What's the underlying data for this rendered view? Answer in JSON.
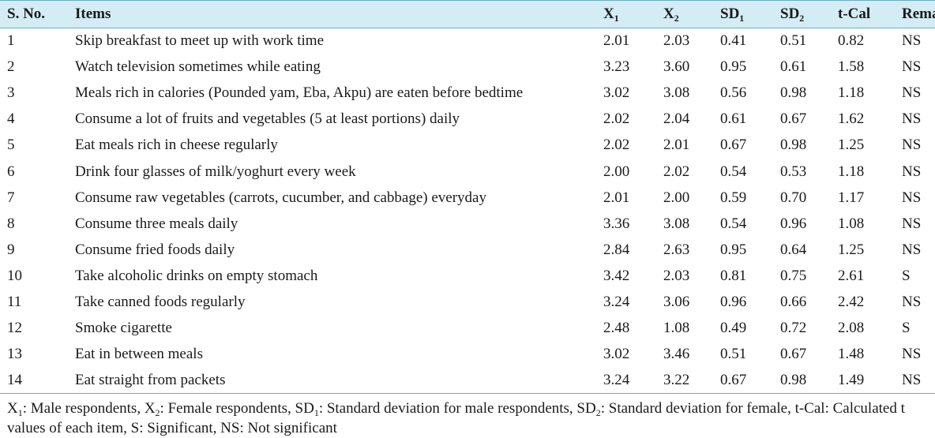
{
  "table": {
    "headers": {
      "sno": "S. No.",
      "items": "Items",
      "x1": {
        "base": "X",
        "sub": "1"
      },
      "x2": {
        "base": "X",
        "sub": "2"
      },
      "sd1": {
        "base": "SD",
        "sub": "1"
      },
      "sd2": {
        "base": "SD",
        "sub": "2"
      },
      "tcal": "t-Cal",
      "remark": "Remark"
    },
    "rows": [
      {
        "sno": "1",
        "item": "Skip breakfast to meet up with work time",
        "x1": "2.01",
        "x2": "2.03",
        "sd1": "0.41",
        "sd2": "0.51",
        "tcal": "0.82",
        "remark": "NS"
      },
      {
        "sno": "2",
        "item": "Watch television sometimes while eating",
        "x1": "3.23",
        "x2": "3.60",
        "sd1": "0.95",
        "sd2": "0.61",
        "tcal": "1.58",
        "remark": "NS"
      },
      {
        "sno": "3",
        "item": "Meals rich in calories (Pounded yam, Eba, Akpu) are eaten before bedtime",
        "x1": "3.02",
        "x2": "3.08",
        "sd1": "0.56",
        "sd2": "0.98",
        "tcal": "1.18",
        "remark": "NS"
      },
      {
        "sno": "4",
        "item": "Consume a lot of fruits and vegetables (5 at least portions) daily",
        "x1": "2.02",
        "x2": "2.04",
        "sd1": "0.61",
        "sd2": "0.67",
        "tcal": "1.62",
        "remark": "NS"
      },
      {
        "sno": "5",
        "item": "Eat meals rich in cheese regularly",
        "x1": "2.02",
        "x2": "2.01",
        "sd1": "0.67",
        "sd2": "0.98",
        "tcal": "1.25",
        "remark": "NS"
      },
      {
        "sno": "6",
        "item": "Drink four glasses of milk/yoghurt every week",
        "x1": "2.00",
        "x2": "2.02",
        "sd1": "0.54",
        "sd2": "0.53",
        "tcal": "1.18",
        "remark": "NS"
      },
      {
        "sno": "7",
        "item": "Consume raw vegetables (carrots, cucumber, and cabbage) everyday",
        "x1": "2.01",
        "x2": "2.00",
        "sd1": "0.59",
        "sd2": "0.70",
        "tcal": "1.17",
        "remark": "NS"
      },
      {
        "sno": "8",
        "item": "Consume three meals daily",
        "x1": "3.36",
        "x2": "3.08",
        "sd1": "0.54",
        "sd2": "0.96",
        "tcal": "1.08",
        "remark": "NS"
      },
      {
        "sno": "9",
        "item": "Consume fried foods daily",
        "x1": "2.84",
        "x2": "2.63",
        "sd1": "0.95",
        "sd2": "0.64",
        "tcal": "1.25",
        "remark": "NS"
      },
      {
        "sno": "10",
        "item": "Take alcoholic drinks on empty stomach",
        "x1": "3.42",
        "x2": "2.03",
        "sd1": "0.81",
        "sd2": "0.75",
        "tcal": "2.61",
        "remark": "S"
      },
      {
        "sno": "11",
        "item": "Take canned foods regularly",
        "x1": "3.24",
        "x2": "3.06",
        "sd1": "0.96",
        "sd2": "0.66",
        "tcal": "2.42",
        "remark": "NS"
      },
      {
        "sno": "12",
        "item": "Smoke cigarette",
        "x1": "2.48",
        "x2": "1.08",
        "sd1": "0.49",
        "sd2": "0.72",
        "tcal": "2.08",
        "remark": "S"
      },
      {
        "sno": "13",
        "item": "Eat in between meals",
        "x1": "3.02",
        "x2": "3.46",
        "sd1": "0.51",
        "sd2": "0.67",
        "tcal": "1.48",
        "remark": "NS"
      },
      {
        "sno": "14",
        "item": "Eat straight from packets",
        "x1": "3.24",
        "x2": "3.22",
        "sd1": "0.67",
        "sd2": "0.98",
        "tcal": "1.49",
        "remark": "NS"
      }
    ]
  },
  "footnote": {
    "parts": [
      {
        "text": "X"
      },
      {
        "sub": "1"
      },
      {
        "text": ": Male respondents, X"
      },
      {
        "sub": "2"
      },
      {
        "text": ": Female respondents, SD"
      },
      {
        "sub": "1"
      },
      {
        "text": ": Standard deviation for male respondents, SD"
      },
      {
        "sub": "2"
      },
      {
        "text": ": Standard deviation for female, t-Cal: Calculated t values of each item, S: Significant, NS: Not significant"
      }
    ]
  },
  "colors": {
    "header_bg": "#d4ecf4",
    "rule": "#6aaec8",
    "text": "#1a1a1a"
  }
}
